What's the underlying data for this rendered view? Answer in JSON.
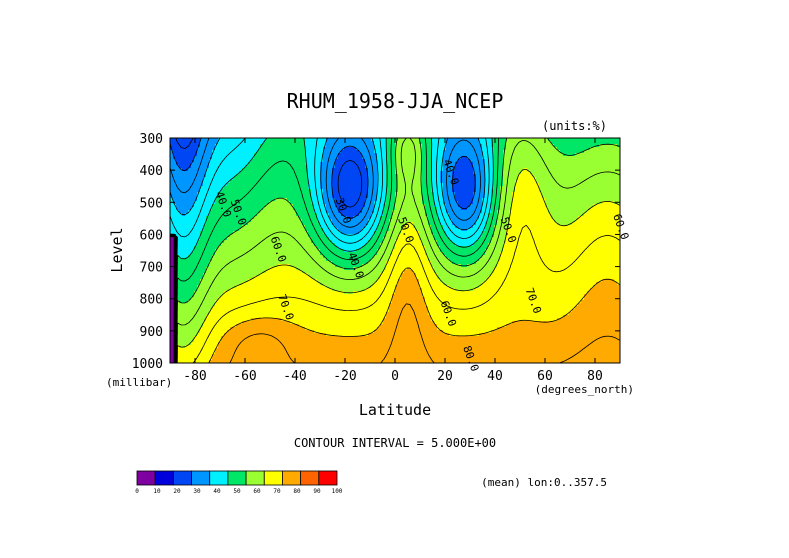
{
  "chart_data": {
    "type": "contour",
    "title": "RHUM_1958-JJA_NCEP",
    "units": "(units:%)",
    "xlabel": "Latitude",
    "ylabel": "Level",
    "x_units": "(degrees_north)",
    "y_units": "(millibar)",
    "xlim": [
      -90,
      90
    ],
    "ylim": [
      1000,
      300
    ],
    "x_ticks": [
      -80,
      -60,
      -40,
      -20,
      0,
      20,
      40,
      60,
      80
    ],
    "y_ticks": [
      300,
      400,
      500,
      600,
      700,
      800,
      900,
      1000
    ],
    "contour_interval_text": "CONTOUR INTERVAL = 5.000E+00",
    "footer_text": "(mean) lon:0..357.5",
    "contour_labels": [
      {
        "text": "40.0",
        "lat": -70,
        "lev": 510
      },
      {
        "text": "50.0",
        "lat": -64,
        "lev": 535
      },
      {
        "text": "60.0",
        "lat": -48,
        "lev": 650
      },
      {
        "text": "70.0",
        "lat": -45,
        "lev": 830
      },
      {
        "text": "30.0",
        "lat": -22,
        "lev": 530
      },
      {
        "text": "40.0",
        "lat": -17,
        "lev": 700
      },
      {
        "text": "50.0",
        "lat": 3,
        "lev": 590
      },
      {
        "text": "40.0",
        "lat": 21,
        "lev": 410
      },
      {
        "text": "50.0",
        "lat": 44,
        "lev": 590
      },
      {
        "text": "60.0",
        "lat": 20,
        "lev": 850
      },
      {
        "text": "70.0",
        "lat": 54,
        "lev": 810
      },
      {
        "text": "80.0",
        "lat": 29,
        "lev": 990
      },
      {
        "text": "60.0",
        "lat": 89,
        "lev": 580
      }
    ],
    "colorbar": {
      "ticks": [
        "0",
        "10",
        "20",
        "30",
        "40",
        "50",
        "60",
        "70",
        "80",
        "90",
        "100"
      ],
      "colors": [
        "#7f00a0",
        "#0000dc",
        "#0046f5",
        "#0096ff",
        "#00f0ff",
        "#00e666",
        "#99ff33",
        "#ffff00",
        "#ffaa00",
        "#ff6400",
        "#ff0000"
      ]
    }
  }
}
